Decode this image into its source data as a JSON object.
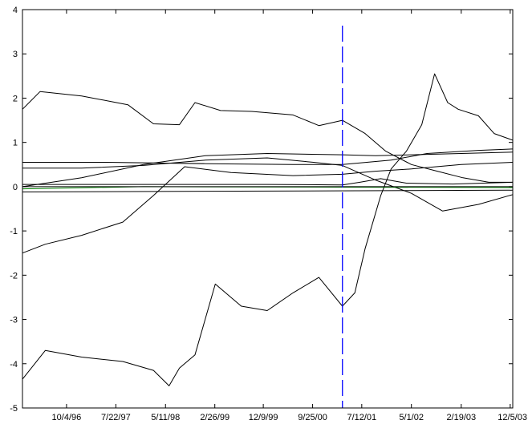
{
  "chart_data": {
    "type": "line",
    "title": "",
    "xlabel": "",
    "ylabel": "",
    "ylim": [
      -5,
      4
    ],
    "yticks": [
      "-5",
      "-4",
      "-3",
      "-2",
      "-1",
      "0",
      "1",
      "2",
      "3",
      "4"
    ],
    "xtick_labels": [
      "10/4/96",
      "7/22/97",
      "5/11/98",
      "2/26/99",
      "12/9/99",
      "9/25/00",
      "7/12/01",
      "5/1/02",
      "2/19/03",
      "12/5/03"
    ],
    "xtick_dates": [
      "1996-10-04",
      "1997-07-22",
      "1998-05-11",
      "1999-02-26",
      "1999-12-09",
      "2000-09-25",
      "2001-07-12",
      "2002-05-01",
      "2003-02-19",
      "2003-12-05"
    ],
    "xlim": [
      "1996-01-18",
      "2003-12-20"
    ],
    "grid": false,
    "legend": "none",
    "vline": {
      "x": "2001-03-20",
      "color": "#0000ff",
      "style": "dashed"
    },
    "series": [
      {
        "color": "#000000",
        "x": [
          "1996-01-18",
          "1996-05-01",
          "1997-01-01",
          "1997-10-01",
          "1998-03-01",
          "1998-08-01",
          "1998-11-01",
          "1999-04-01",
          "1999-10-01",
          "2000-06-01",
          "2000-11-01",
          "2001-03-20",
          "2001-08-01",
          "2001-12-01",
          "2002-05-01",
          "2002-10-01",
          "2003-03-01",
          "2003-08-01",
          "2003-12-20"
        ],
        "y": [
          1.75,
          2.15,
          2.05,
          1.85,
          1.42,
          1.4,
          1.9,
          1.72,
          1.7,
          1.62,
          1.38,
          1.5,
          1.2,
          0.8,
          0.5,
          0.35,
          0.2,
          0.1,
          0.1
        ]
      },
      {
        "color": "#000000",
        "x": [
          "1996-01-18",
          "1996-06-01",
          "1997-01-01",
          "1997-09-01",
          "1998-03-01",
          "1998-06-01",
          "1998-08-01",
          "1998-11-01",
          "1999-03-01",
          "1999-08-01",
          "2000-01-01",
          "2000-06-01",
          "2000-11-01",
          "2001-03-20",
          "2001-06-01",
          "2001-08-01",
          "2001-11-01",
          "2002-01-01",
          "2002-04-01",
          "2002-07-01",
          "2002-09-15",
          "2002-12-01",
          "2003-02-01",
          "2003-06-01",
          "2003-09-01",
          "2003-12-20"
        ],
        "y": [
          -4.35,
          -3.7,
          -3.85,
          -3.95,
          -4.15,
          -4.5,
          -4.1,
          -3.8,
          -2.2,
          -2.7,
          -2.8,
          -2.4,
          -2.05,
          -2.7,
          -2.4,
          -1.4,
          -0.2,
          0.4,
          0.8,
          1.4,
          2.55,
          1.9,
          1.75,
          1.6,
          1.2,
          1.05
        ]
      },
      {
        "color": "#000000",
        "x": [
          "1996-01-18",
          "1996-06-01",
          "1997-01-01",
          "1997-09-01",
          "1998-03-01",
          "1998-09-01",
          "1999-06-01",
          "2000-06-01",
          "2001-03-20",
          "2001-10-01",
          "2002-05-01",
          "2003-02-19",
          "2003-12-20"
        ],
        "y": [
          -1.5,
          -1.3,
          -1.1,
          -0.8,
          -0.2,
          0.45,
          0.32,
          0.25,
          0.28,
          0.35,
          0.4,
          0.5,
          0.55
        ]
      },
      {
        "color": "#000000",
        "x": [
          "1996-01-18",
          "1997-01-01",
          "1998-01-01",
          "1999-01-01",
          "2000-01-01",
          "2000-10-01",
          "2001-03-20",
          "2001-10-01",
          "2002-05-01",
          "2002-11-01",
          "2003-06-01",
          "2003-12-20"
        ],
        "y": [
          0.42,
          0.42,
          0.48,
          0.6,
          0.65,
          0.55,
          0.48,
          0.15,
          -0.15,
          -0.55,
          -0.4,
          -0.18
        ]
      },
      {
        "color": "#000000",
        "x": [
          "1996-01-18",
          "1997-01-01",
          "1998-01-01",
          "1999-01-01",
          "2000-01-01",
          "2001-03-20",
          "2001-10-01",
          "2002-05-01",
          "2003-02-19",
          "2003-12-20"
        ],
        "y": [
          0.0,
          0.2,
          0.5,
          0.7,
          0.75,
          0.72,
          0.7,
          0.72,
          0.75,
          0.78
        ]
      },
      {
        "color": "#000000",
        "x": [
          "1996-01-18",
          "1997-06-01",
          "1999-01-01",
          "2000-06-01",
          "2001-03-20",
          "2002-01-01",
          "2002-08-01",
          "2003-06-01",
          "2003-12-20"
        ],
        "y": [
          0.55,
          0.55,
          0.52,
          0.5,
          0.5,
          0.6,
          0.75,
          0.82,
          0.85
        ]
      },
      {
        "color": "#000000",
        "x": [
          "1996-01-18",
          "1998-01-01",
          "2000-01-01",
          "2001-03-20",
          "2001-07-01",
          "2001-11-01",
          "2002-04-01",
          "2003-01-01",
          "2003-12-20"
        ],
        "y": [
          0.05,
          0.05,
          0.05,
          0.04,
          0.1,
          0.18,
          0.08,
          0.06,
          0.1
        ]
      },
      {
        "color": "#000000",
        "x": [
          "1996-01-18",
          "2003-12-20"
        ],
        "y": [
          -0.12,
          -0.08
        ]
      },
      {
        "color": "#008000",
        "x": [
          "1996-01-18",
          "1998-01-01",
          "2003-12-20"
        ],
        "y": [
          -0.05,
          0.0,
          -0.02
        ]
      }
    ]
  }
}
